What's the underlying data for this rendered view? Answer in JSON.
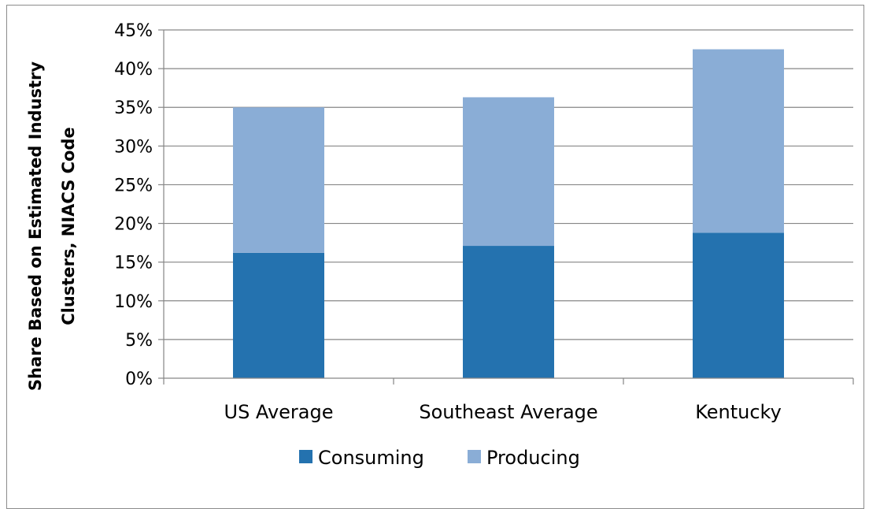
{
  "chart_data": {
    "type": "bar",
    "stacked": true,
    "categories": [
      "US Average",
      "Southeast Average",
      "Kentucky"
    ],
    "series": [
      {
        "name": "Consuming",
        "values": [
          16.2,
          17.1,
          18.8
        ],
        "color": "#2472AF"
      },
      {
        "name": "Producing",
        "values": [
          18.8,
          19.2,
          23.7
        ],
        "color": "#8AADD6"
      }
    ],
    "ylabel_lines": [
      "Share Based on Estimated Industry",
      "Clusters, NIACS Code"
    ],
    "ylim": [
      0,
      45
    ],
    "yticks": [
      0,
      5,
      10,
      15,
      20,
      25,
      30,
      35,
      40,
      45
    ],
    "ytick_labels": [
      "0%",
      "5%",
      "10%",
      "15%",
      "20%",
      "25%",
      "30%",
      "35%",
      "40%",
      "45%"
    ],
    "grid": true,
    "legend_position": "bottom",
    "gridline_color": "#868686"
  }
}
